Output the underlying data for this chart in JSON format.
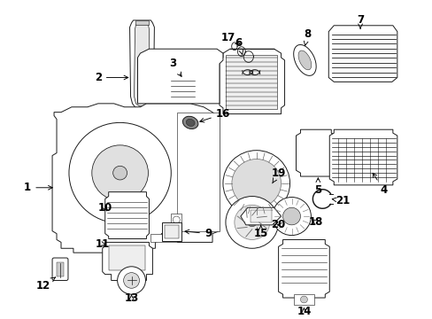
{
  "background_color": "#ffffff",
  "line_color": "#1a1a1a",
  "figsize": [
    4.89,
    3.6
  ],
  "dpi": 100,
  "label_fontsize": 8.5,
  "lw": 0.7
}
